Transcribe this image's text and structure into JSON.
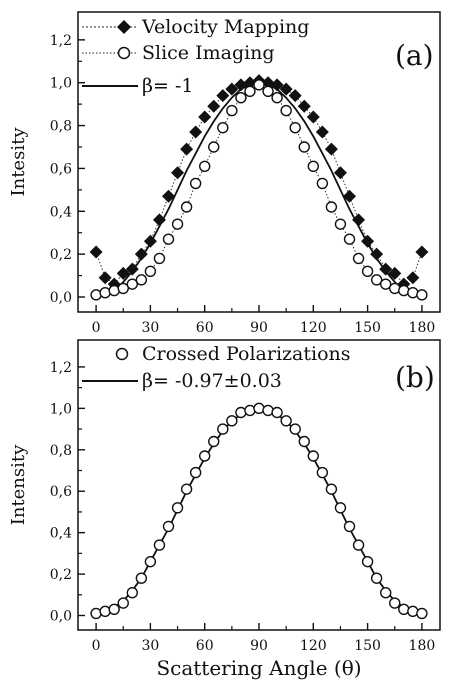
{
  "chart_data": [
    {
      "type": "scatter",
      "panel_label": "(a)",
      "ylabel": "Intesity",
      "xlabel": "",
      "xlim": [
        -10,
        190
      ],
      "ylim": [
        -0.07,
        1.33
      ],
      "xticks": [
        "0",
        "30",
        "60",
        "90",
        "120",
        "150",
        "180"
      ],
      "yticks": [
        "0,0",
        "0,2",
        "0,4",
        "0,6",
        "0,8",
        "1,0",
        "1,2"
      ],
      "legend_position": "top-left",
      "series": [
        {
          "name": "Velocity Mapping",
          "marker": "filled-diamond",
          "line": "dotted",
          "x": [
            0,
            5,
            10,
            15,
            20,
            25,
            30,
            35,
            40,
            45,
            50,
            55,
            60,
            65,
            70,
            75,
            80,
            85,
            90,
            95,
            100,
            105,
            110,
            115,
            120,
            125,
            130,
            135,
            140,
            145,
            150,
            155,
            160,
            165,
            170,
            175,
            180
          ],
          "y": [
            0.21,
            0.09,
            0.06,
            0.11,
            0.13,
            0.2,
            0.26,
            0.36,
            0.47,
            0.58,
            0.69,
            0.77,
            0.84,
            0.89,
            0.94,
            0.97,
            0.99,
            1.0,
            1.01,
            1.0,
            0.99,
            0.97,
            0.94,
            0.89,
            0.84,
            0.77,
            0.69,
            0.58,
            0.47,
            0.36,
            0.26,
            0.2,
            0.13,
            0.11,
            0.06,
            0.09,
            0.21
          ]
        },
        {
          "name": "Slice Imaging",
          "marker": "open-circle",
          "line": "dotted",
          "x": [
            0,
            5,
            10,
            15,
            20,
            25,
            30,
            35,
            40,
            45,
            50,
            55,
            60,
            65,
            70,
            75,
            80,
            85,
            90,
            95,
            100,
            105,
            110,
            115,
            120,
            125,
            130,
            135,
            140,
            145,
            150,
            155,
            160,
            165,
            170,
            175,
            180
          ],
          "y": [
            0.01,
            0.02,
            0.03,
            0.04,
            0.06,
            0.08,
            0.12,
            0.18,
            0.27,
            0.34,
            0.42,
            0.53,
            0.61,
            0.7,
            0.79,
            0.87,
            0.93,
            0.96,
            0.99,
            0.96,
            0.93,
            0.87,
            0.79,
            0.7,
            0.61,
            0.53,
            0.42,
            0.34,
            0.27,
            0.18,
            0.12,
            0.08,
            0.06,
            0.04,
            0.03,
            0.02,
            0.01
          ]
        },
        {
          "name": "β= -1",
          "marker": "none",
          "line": "solid",
          "x": [
            0,
            5,
            10,
            15,
            20,
            25,
            30,
            35,
            40,
            45,
            50,
            55,
            60,
            65,
            70,
            75,
            80,
            85,
            90,
            95,
            100,
            105,
            110,
            115,
            120,
            125,
            130,
            135,
            140,
            145,
            150,
            155,
            160,
            165,
            170,
            175,
            180
          ],
          "y": [
            0.0,
            0.01,
            0.03,
            0.07,
            0.12,
            0.18,
            0.25,
            0.33,
            0.41,
            0.5,
            0.59,
            0.67,
            0.75,
            0.82,
            0.88,
            0.93,
            0.97,
            0.99,
            1.0,
            0.99,
            0.97,
            0.93,
            0.88,
            0.82,
            0.75,
            0.67,
            0.59,
            0.5,
            0.41,
            0.33,
            0.25,
            0.18,
            0.12,
            0.07,
            0.03,
            0.01,
            0.0
          ]
        }
      ]
    },
    {
      "type": "scatter",
      "panel_label": "(b)",
      "ylabel": "Intensity",
      "xlabel": "Scattering Angle (θ)",
      "xlim": [
        -10,
        190
      ],
      "ylim": [
        -0.07,
        1.33
      ],
      "xticks": [
        "0",
        "30",
        "60",
        "90",
        "120",
        "150",
        "180"
      ],
      "yticks": [
        "0,0",
        "0,2",
        "0,4",
        "0,6",
        "0,8",
        "1,0",
        "1,2"
      ],
      "legend_position": "top-left",
      "series": [
        {
          "name": "Crossed Polarizations",
          "marker": "open-circle",
          "line": "none",
          "x": [
            0,
            5,
            10,
            15,
            20,
            25,
            30,
            35,
            40,
            45,
            50,
            55,
            60,
            65,
            70,
            75,
            80,
            85,
            90,
            95,
            100,
            105,
            110,
            115,
            120,
            125,
            130,
            135,
            140,
            145,
            150,
            155,
            160,
            165,
            170,
            175,
            180
          ],
          "y": [
            0.01,
            0.02,
            0.03,
            0.06,
            0.11,
            0.18,
            0.26,
            0.34,
            0.43,
            0.52,
            0.61,
            0.69,
            0.77,
            0.84,
            0.9,
            0.94,
            0.98,
            0.99,
            1.0,
            0.99,
            0.98,
            0.94,
            0.9,
            0.84,
            0.77,
            0.69,
            0.61,
            0.52,
            0.43,
            0.34,
            0.26,
            0.18,
            0.11,
            0.06,
            0.03,
            0.02,
            0.01
          ]
        },
        {
          "name": "β= -0.97±0.03",
          "marker": "none",
          "line": "solid",
          "x": [
            0,
            5,
            10,
            15,
            20,
            25,
            30,
            35,
            40,
            45,
            50,
            55,
            60,
            65,
            70,
            75,
            80,
            85,
            90,
            95,
            100,
            105,
            110,
            115,
            120,
            125,
            130,
            135,
            140,
            145,
            150,
            155,
            160,
            165,
            170,
            175,
            180
          ],
          "y": [
            0.01,
            0.02,
            0.04,
            0.07,
            0.12,
            0.18,
            0.26,
            0.34,
            0.42,
            0.51,
            0.6,
            0.68,
            0.76,
            0.83,
            0.89,
            0.94,
            0.97,
            0.99,
            1.0,
            0.99,
            0.97,
            0.94,
            0.89,
            0.83,
            0.76,
            0.68,
            0.6,
            0.51,
            0.42,
            0.34,
            0.26,
            0.18,
            0.12,
            0.07,
            0.04,
            0.02,
            0.01
          ]
        }
      ]
    }
  ]
}
